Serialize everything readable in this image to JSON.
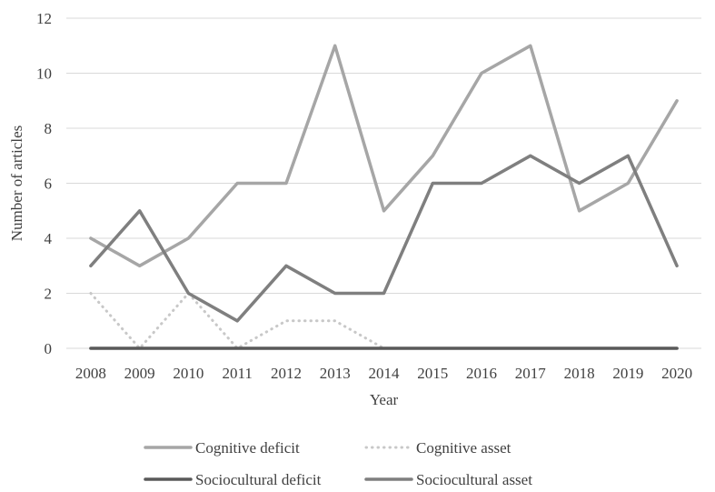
{
  "chart_data": {
    "type": "line",
    "title": "",
    "xlabel": "Year",
    "ylabel": "Number of articles",
    "categories": [
      "2008",
      "2009",
      "2010",
      "2011",
      "2012",
      "2013",
      "2014",
      "2015",
      "2016",
      "2017",
      "2018",
      "2019",
      "2020"
    ],
    "ylim": [
      0,
      12
    ],
    "yticks": [
      0,
      2,
      4,
      6,
      8,
      10,
      12
    ],
    "grid": true,
    "legend_position": "bottom",
    "series": [
      {
        "name": "Cognitive deficit",
        "color": "#a6a6a6",
        "style": "solid",
        "values": [
          4,
          3,
          4,
          6,
          6,
          11,
          5,
          7,
          10,
          11,
          5,
          6,
          9
        ]
      },
      {
        "name": "Cognitive asset",
        "color": "#c8c8c8",
        "style": "dotted",
        "values": [
          2,
          0,
          2,
          0,
          1,
          1,
          0,
          null,
          null,
          null,
          null,
          null,
          null
        ]
      },
      {
        "name": "Sociocultural deficit",
        "color": "#595959",
        "style": "solid",
        "values": [
          0,
          0,
          0,
          0,
          0,
          0,
          0,
          0,
          0,
          0,
          0,
          0,
          0
        ]
      },
      {
        "name": "Sociocultural asset",
        "color": "#7f7f7f",
        "style": "solid",
        "values": [
          3,
          5,
          2,
          1,
          3,
          2,
          2,
          6,
          6,
          7,
          6,
          7,
          3
        ]
      }
    ]
  }
}
